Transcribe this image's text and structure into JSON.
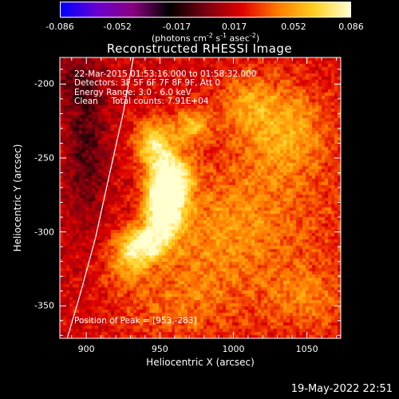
{
  "chart_data": {
    "type": "heatmap",
    "title": "Reconstructed RHESSI Image",
    "xlabel": "Heliocentric X (arcsec)",
    "ylabel": "Heliocentric Y (arcsec)",
    "xlim": [
      882,
      1073
    ],
    "ylim": [
      -372,
      -182
    ],
    "x_ticks": [
      900,
      950,
      1000,
      1050
    ],
    "y_ticks": [
      -200,
      -250,
      -300,
      -350
    ],
    "colorbar": {
      "units_html": "(photons cm<sup>-2</sup> s<sup>-1</sup> asec<sup>-2</sup>)",
      "ticks": [
        "-0.086",
        "-0.052",
        "-0.017",
        "0.017",
        "0.052",
        "0.086"
      ],
      "min": -0.086,
      "max": 0.086,
      "colormap": [
        "#0000ff",
        "#6a00d0",
        "#8a0080",
        "#000000",
        "#7a0010",
        "#e00000",
        "#ff7a00",
        "#ffd020",
        "#ffffd0"
      ]
    },
    "annotations": {
      "time": "22-Mar-2015 01:53:16.000 to 01:58:32.000",
      "detectors": "Detectors: 3F 5F 6F 7F 8F 9F, Att 0",
      "energy": "Energy Range: 3.0 - 6.0 keV",
      "clean": "Clean     Total counts: 7.91E+04",
      "peak": "Position of Peak = [953,-283]"
    },
    "peak": {
      "x": 953,
      "y": -283
    },
    "limb_curve": [
      [
        932,
        -182
      ],
      [
        925,
        -220
      ],
      [
        916,
        -260
      ],
      [
        906,
        -305
      ],
      [
        895,
        -345
      ],
      [
        887,
        -372
      ]
    ],
    "sources": [
      {
        "x": 953,
        "y": -283,
        "sx": 9,
        "sy": 14,
        "amp": 0.086
      },
      {
        "x": 958,
        "y": -262,
        "sx": 10,
        "sy": 12,
        "amp": 0.058
      },
      {
        "x": 946,
        "y": -240,
        "sx": 9,
        "sy": 11,
        "amp": 0.052
      },
      {
        "x": 940,
        "y": -308,
        "sx": 11,
        "sy": 9,
        "amp": 0.055
      },
      {
        "x": 972,
        "y": -228,
        "sx": 9,
        "sy": 8,
        "amp": 0.038
      },
      {
        "x": 928,
        "y": -320,
        "sx": 10,
        "sy": 12,
        "amp": 0.03
      },
      {
        "x": 985,
        "y": -300,
        "sx": 25,
        "sy": 25,
        "amp": 0.022
      },
      {
        "x": 1030,
        "y": -280,
        "sx": 35,
        "sy": 60,
        "amp": 0.02
      },
      {
        "x": 1035,
        "y": -230,
        "sx": 20,
        "sy": 20,
        "amp": 0.025
      },
      {
        "x": 1008,
        "y": -212,
        "sx": 12,
        "sy": 12,
        "amp": 0.022
      },
      {
        "x": 960,
        "y": -350,
        "sx": 30,
        "sy": 20,
        "amp": 0.02
      },
      {
        "x": 1050,
        "y": -345,
        "sx": 18,
        "sy": 15,
        "amp": 0.018
      },
      {
        "x": 900,
        "y": -250,
        "sx": 10,
        "sy": 30,
        "amp": -0.025
      },
      {
        "x": 895,
        "y": -200,
        "sx": 12,
        "sy": 15,
        "amp": -0.02
      }
    ],
    "background": 0.018
  },
  "footer": {
    "date": "19-May-2022 22:51"
  }
}
